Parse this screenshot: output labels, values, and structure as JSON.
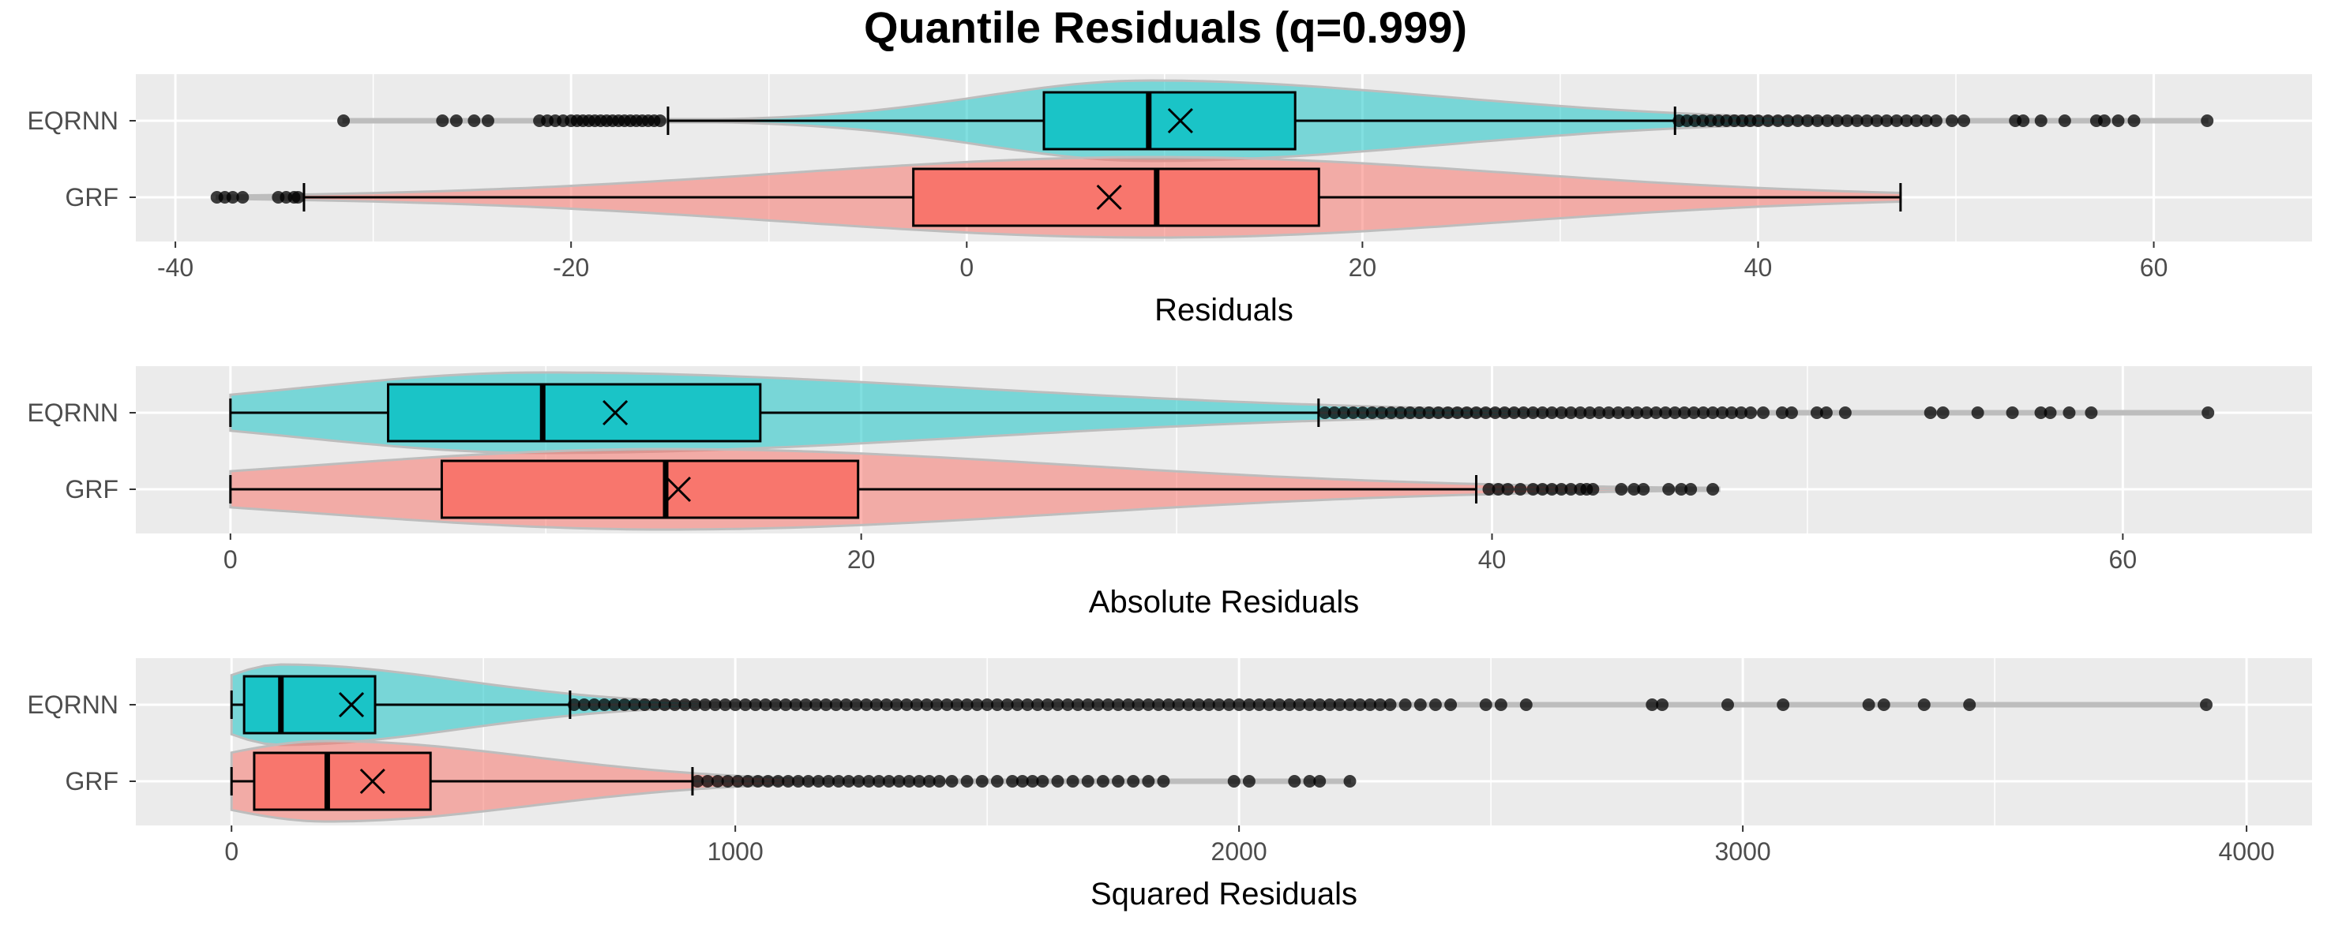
{
  "chart_data": {
    "type": "boxplot",
    "title": "Quantile Residuals (q=0.999)",
    "colors": {
      "EQRNN": "#1ac4c7",
      "GRF": "#f8766d",
      "panel_bg": "#ebebeb",
      "grid": "#ffffff"
    },
    "panels": [
      {
        "xlabel": "Residuals",
        "xlim": [
          -42,
          68
        ],
        "xticks": [
          -40,
          -20,
          0,
          20,
          40,
          60
        ],
        "xtick_labels": [
          "-40",
          "-20",
          "0",
          "20",
          "40",
          "60"
        ],
        "groups": [
          {
            "name": "EQRNN",
            "q1": 3.9,
            "median": 9.2,
            "q3": 16.6,
            "mean": 10.8,
            "whisker_low": -15.1,
            "whisker_high": 35.8,
            "range": [
              -31.5,
              62.7
            ],
            "outliers": [
              -31.5,
              -26.5,
              -25.8,
              -24.9,
              -24.2,
              -21.6,
              -21.2,
              -20.8,
              -20.4,
              -20.0,
              -19.7,
              -19.4,
              -19.1,
              -18.8,
              -18.5,
              -18.2,
              -17.9,
              -17.6,
              -17.3,
              -17.0,
              -16.7,
              -16.4,
              -16.1,
              -15.8,
              -15.5,
              36.0,
              36.4,
              36.8,
              37.2,
              37.6,
              38.0,
              38.4,
              38.8,
              39.2,
              39.6,
              40.0,
              40.5,
              41.0,
              41.5,
              42.0,
              42.5,
              43.0,
              43.5,
              44.0,
              44.5,
              45.0,
              45.5,
              46.0,
              46.5,
              47.0,
              47.5,
              48.0,
              48.5,
              49.0,
              49.8,
              50.4,
              53.0,
              53.4,
              54.3,
              55.5,
              57.1,
              57.5,
              58.2,
              59.0,
              62.7
            ]
          },
          {
            "name": "GRF",
            "q1": -2.7,
            "median": 9.6,
            "q3": 17.8,
            "mean": 7.2,
            "whisker_low": -33.5,
            "whisker_high": 47.2,
            "range": [
              -37.9,
              47.2
            ],
            "outliers": [
              -37.9,
              -37.5,
              -37.1,
              -36.6,
              -34.8,
              -34.4,
              -34.0,
              -33.8
            ]
          }
        ]
      },
      {
        "xlabel": "Absolute Residuals",
        "xlim": [
          -3,
          66
        ],
        "xticks": [
          0,
          20,
          40,
          60
        ],
        "xtick_labels": [
          "0",
          "20",
          "40",
          "60"
        ],
        "groups": [
          {
            "name": "EQRNN",
            "q1": 5.0,
            "median": 9.9,
            "q3": 16.8,
            "mean": 12.2,
            "whisker_low": 0,
            "whisker_high": 34.5,
            "range": [
              0,
              62.7
            ],
            "outliers": [
              34.7,
              35.0,
              35.3,
              35.6,
              35.9,
              36.2,
              36.5,
              36.8,
              37.1,
              37.4,
              37.7,
              38.0,
              38.3,
              38.6,
              38.9,
              39.2,
              39.5,
              39.8,
              40.1,
              40.4,
              40.7,
              41.0,
              41.3,
              41.6,
              41.9,
              42.2,
              42.5,
              42.8,
              43.1,
              43.4,
              43.7,
              44.0,
              44.3,
              44.6,
              44.9,
              45.2,
              45.5,
              45.8,
              46.1,
              46.4,
              46.7,
              47.0,
              47.3,
              47.6,
              47.9,
              48.2,
              48.6,
              49.2,
              49.5,
              50.3,
              50.6,
              51.2,
              53.9,
              54.3,
              55.4,
              56.5,
              57.4,
              57.7,
              58.3,
              59.0,
              62.7
            ]
          },
          {
            "name": "GRF",
            "q1": 6.7,
            "median": 13.8,
            "q3": 19.9,
            "mean": 14.2,
            "whisker_low": 0,
            "whisker_high": 39.5,
            "range": [
              0,
              47.2
            ],
            "outliers": [
              39.9,
              40.2,
              40.5,
              40.9,
              41.3,
              41.6,
              41.9,
              42.2,
              42.5,
              42.8,
              43.0,
              43.2,
              44.1,
              44.5,
              44.8,
              45.6,
              46.0,
              46.3,
              47.0
            ]
          }
        ]
      },
      {
        "xlabel": "Squared Residuals",
        "xlim": [
          -190,
          4130
        ],
        "xticks": [
          0,
          1000,
          2000,
          3000,
          4000
        ],
        "xtick_labels": [
          "0",
          "1000",
          "2000",
          "3000",
          "4000"
        ],
        "groups": [
          {
            "name": "EQRNN",
            "q1": 25,
            "median": 98,
            "q3": 285,
            "mean": 238,
            "whisker_low": 0,
            "whisker_high": 672,
            "range": [
              0,
              3920
            ],
            "outliers": [
              680,
              700,
              720,
              740,
              760,
              780,
              800,
              820,
              840,
              860,
              880,
              900,
              920,
              940,
              960,
              980,
              1000,
              1020,
              1040,
              1060,
              1080,
              1100,
              1120,
              1140,
              1160,
              1180,
              1200,
              1220,
              1240,
              1260,
              1280,
              1300,
              1320,
              1340,
              1360,
              1380,
              1400,
              1420,
              1440,
              1460,
              1480,
              1500,
              1520,
              1540,
              1560,
              1580,
              1600,
              1620,
              1640,
              1660,
              1680,
              1700,
              1720,
              1740,
              1760,
              1780,
              1800,
              1820,
              1840,
              1860,
              1880,
              1900,
              1920,
              1940,
              1960,
              1980,
              2000,
              2020,
              2040,
              2060,
              2080,
              2100,
              2120,
              2140,
              2160,
              2180,
              2200,
              2220,
              2240,
              2260,
              2280,
              2300,
              2330,
              2360,
              2390,
              2420,
              2490,
              2520,
              2570,
              2820,
              2840,
              2970,
              3080,
              3250,
              3280,
              3360,
              3450,
              3920
            ]
          },
          {
            "name": "GRF",
            "q1": 45,
            "median": 190,
            "q3": 395,
            "mean": 280,
            "whisker_low": 0,
            "whisker_high": 915,
            "range": [
              0,
              2220
            ],
            "outliers": [
              925,
              945,
              965,
              985,
              1005,
              1025,
              1045,
              1065,
              1085,
              1105,
              1125,
              1145,
              1165,
              1185,
              1205,
              1225,
              1245,
              1265,
              1285,
              1305,
              1325,
              1345,
              1365,
              1385,
              1405,
              1430,
              1460,
              1490,
              1520,
              1550,
              1570,
              1590,
              1610,
              1640,
              1670,
              1700,
              1730,
              1760,
              1790,
              1820,
              1850,
              1990,
              2020,
              2110,
              2140,
              2160,
              2220
            ]
          }
        ]
      }
    ]
  }
}
